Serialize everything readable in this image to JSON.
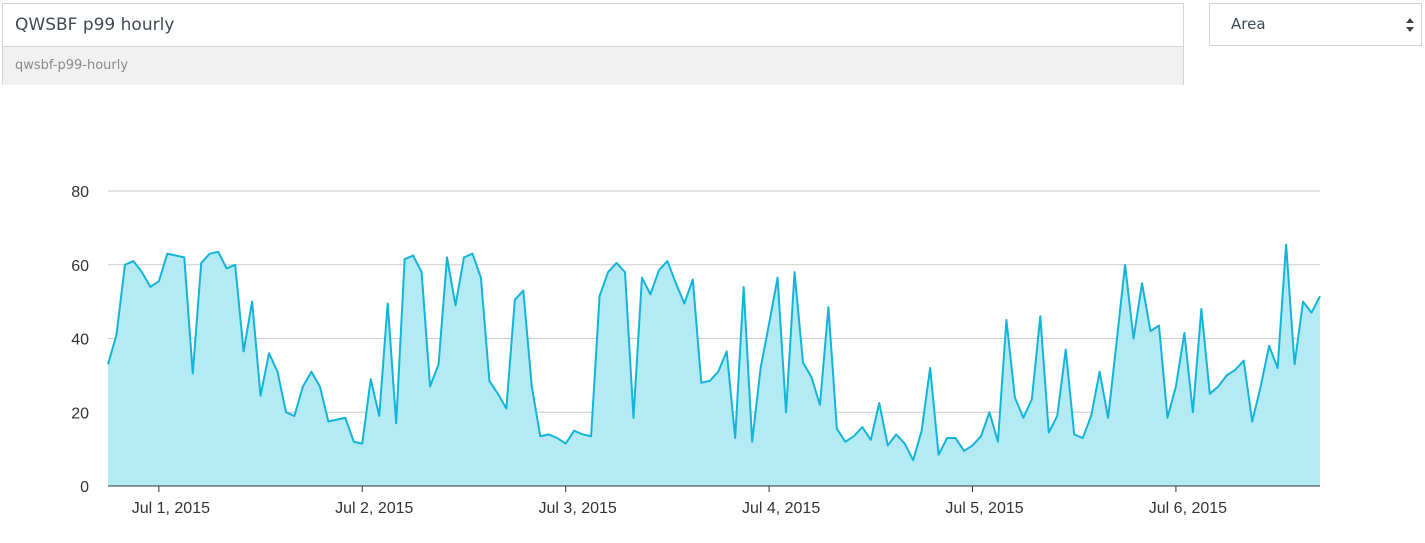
{
  "header": {
    "title_value": "QWSBF p99 hourly",
    "slug": "qwsbf-p99-hourly",
    "chart_type_select": "Area"
  },
  "icons": {
    "select_arrows": "up-down-caret-icon"
  },
  "colors": {
    "line": "#12b5d9",
    "fill": "#b3eaf4",
    "grid": "#cccccc",
    "axis": "#333333"
  },
  "chart_data": {
    "type": "area",
    "title": "",
    "xlabel": "",
    "ylabel": "",
    "ylim": [
      0,
      80
    ],
    "yticks": [
      0,
      20,
      40,
      60,
      80
    ],
    "xticks": [
      "Jul 1, 2015",
      "Jul 2, 2015",
      "Jul 3, 2015",
      "Jul 4, 2015",
      "Jul 5, 2015",
      "Jul 6, 2015"
    ],
    "x_start": "2015-06-30T18:00",
    "x_interval_hours": 1,
    "grid": true,
    "legend": "none",
    "values": [
      33,
      41,
      60,
      61,
      58,
      54,
      55.5,
      63,
      62.5,
      62,
      30.5,
      60.5,
      63,
      63.5,
      59,
      60,
      36.5,
      50,
      24.5,
      36,
      31,
      20,
      19,
      27,
      31,
      27,
      17.5,
      18,
      18.5,
      12,
      11.5,
      29,
      19,
      49.5,
      17,
      61.5,
      62.5,
      58,
      27,
      33,
      62,
      49,
      62,
      63,
      56.5,
      28.5,
      25,
      21,
      50.5,
      53,
      27,
      13.5,
      14,
      13,
      11.5,
      15,
      14,
      13.5,
      51.5,
      58,
      60.5,
      58,
      18.5,
      56.5,
      52,
      58.5,
      61,
      55,
      49.5,
      56,
      28,
      28.5,
      31,
      36.5,
      13,
      54,
      12,
      32,
      44,
      56.5,
      20,
      58,
      33.5,
      29.5,
      22,
      48.5,
      15.5,
      12,
      13.5,
      16,
      12.5,
      22.5,
      11,
      14,
      11.5,
      7,
      15,
      32,
      8.5,
      13,
      13,
      9.5,
      11,
      13.5,
      20,
      12,
      45,
      24,
      18.5,
      23.5,
      46,
      14.5,
      19,
      37,
      14,
      13,
      19,
      31,
      18.5,
      39,
      60,
      40,
      55,
      42,
      43.5,
      18.5,
      27,
      41.5,
      20,
      48,
      25,
      27,
      30,
      31.5,
      34,
      17.5,
      27,
      38,
      32,
      65.5,
      33,
      50,
      47,
      51.5
    ]
  }
}
